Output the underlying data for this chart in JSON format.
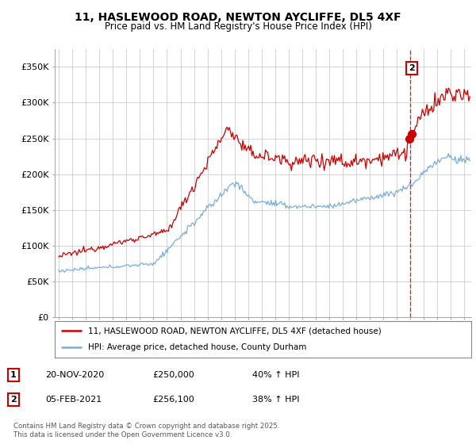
{
  "title_line1": "11, HASLEWOOD ROAD, NEWTON AYCLIFFE, DL5 4XF",
  "title_line2": "Price paid vs. HM Land Registry's House Price Index (HPI)",
  "ylabel_ticks": [
    "£0",
    "£50K",
    "£100K",
    "£150K",
    "£200K",
    "£250K",
    "£300K",
    "£350K"
  ],
  "ytick_values": [
    0,
    50000,
    100000,
    150000,
    200000,
    250000,
    300000,
    350000
  ],
  "ylim": [
    0,
    375000
  ],
  "xlim_start": 1994.7,
  "xlim_end": 2025.5,
  "legend_line1": "11, HASLEWOOD ROAD, NEWTON AYCLIFFE, DL5 4XF (detached house)",
  "legend_line2": "HPI: Average price, detached house, County Durham",
  "annotation1_label": "1",
  "annotation1_date": "20-NOV-2020",
  "annotation1_price": "£250,000",
  "annotation1_hpi": "40% ↑ HPI",
  "annotation2_label": "2",
  "annotation2_date": "05-FEB-2021",
  "annotation2_price": "£256,100",
  "annotation2_hpi": "38% ↑ HPI",
  "footer": "Contains HM Land Registry data © Crown copyright and database right 2025.\nThis data is licensed under the Open Government Licence v3.0.",
  "line1_color": "#cc0000",
  "line2_color": "#7aaddc",
  "vline_color": "#cc0000",
  "grid_color": "#cccccc",
  "background_color": "#ffffff",
  "sale1_x": 2020.9,
  "sale2_x": 2021.1,
  "sale1_y": 250000,
  "sale2_y": 256100
}
